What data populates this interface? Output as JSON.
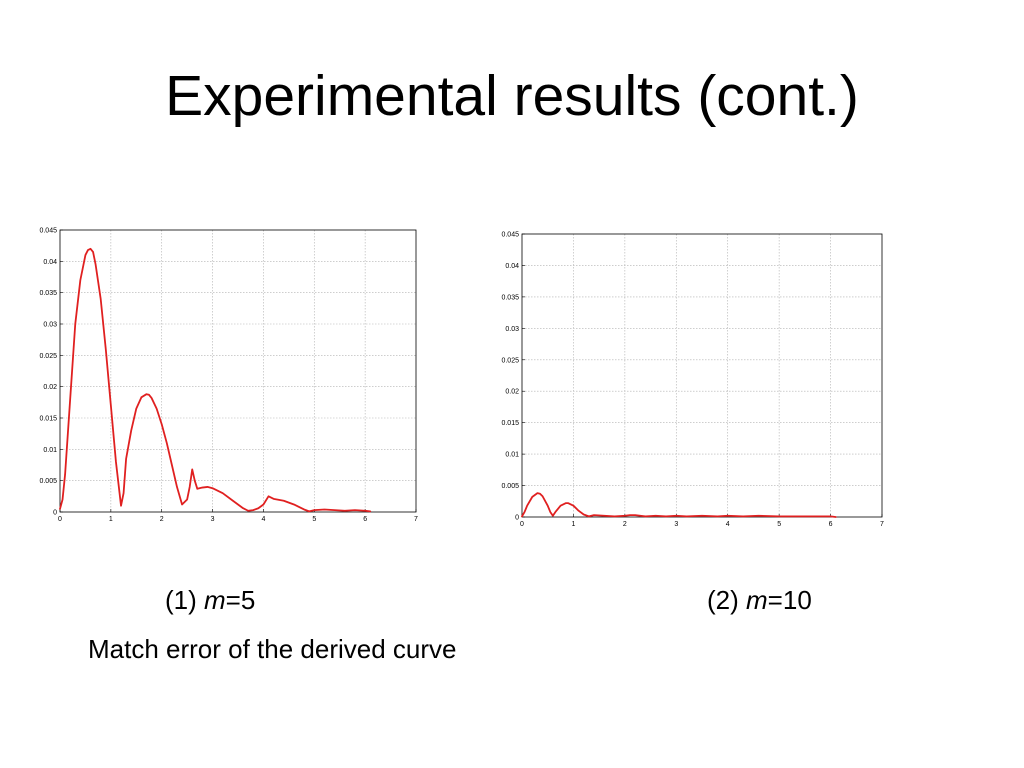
{
  "slide": {
    "title": "Experimental results (cont.)",
    "subtitle": "Match error of the derived curve",
    "captions": [
      {
        "prefix": "(1) ",
        "var": "m",
        "suffix": "=5"
      },
      {
        "prefix": "(2) ",
        "var": "m",
        "suffix": "=10"
      }
    ]
  },
  "chart_data": [
    {
      "type": "line",
      "title": "",
      "xlabel": "",
      "ylabel": "",
      "xlim": [
        0,
        7
      ],
      "ylim": [
        0,
        0.045
      ],
      "grid": true,
      "x_ticks": [
        "0",
        "1",
        "2",
        "3",
        "4",
        "5",
        "6",
        "7"
      ],
      "y_ticks": [
        "0",
        "0.005",
        "0.01",
        "0.015",
        "0.02",
        "0.025",
        "0.03",
        "0.035",
        "0.04",
        "0.045"
      ],
      "line_color": "#e02020",
      "series": [
        {
          "x": [
            0,
            0.05,
            0.1,
            0.2,
            0.3,
            0.4,
            0.5,
            0.55,
            0.6,
            0.65,
            0.7,
            0.8,
            0.9,
            1.0,
            1.1,
            1.2,
            1.25,
            1.3,
            1.4,
            1.5,
            1.6,
            1.7,
            1.75,
            1.8,
            1.9,
            2.0,
            2.1,
            2.2,
            2.3,
            2.4,
            2.5,
            2.55,
            2.6,
            2.65,
            2.7,
            2.8,
            2.9,
            3.0,
            3.2,
            3.4,
            3.6,
            3.7,
            3.8,
            3.9,
            4.0,
            4.1,
            4.2,
            4.4,
            4.6,
            4.8,
            4.9,
            5.0,
            5.2,
            5.4,
            5.6,
            5.8,
            6.0,
            6.1
          ],
          "y": [
            0.0005,
            0.002,
            0.006,
            0.018,
            0.03,
            0.037,
            0.041,
            0.0418,
            0.042,
            0.0415,
            0.0395,
            0.034,
            0.026,
            0.017,
            0.008,
            0.001,
            0.003,
            0.0085,
            0.013,
            0.0165,
            0.0183,
            0.0188,
            0.0187,
            0.0182,
            0.0165,
            0.014,
            0.011,
            0.0075,
            0.004,
            0.0012,
            0.002,
            0.004,
            0.0068,
            0.005,
            0.0037,
            0.0039,
            0.004,
            0.0038,
            0.003,
            0.0018,
            0.0006,
            0.0002,
            0.0003,
            0.0006,
            0.0012,
            0.0025,
            0.0021,
            0.0018,
            0.0012,
            0.0004,
            0.0001,
            0.0003,
            0.0004,
            0.0003,
            0.0002,
            0.0003,
            0.0002,
            0.0001
          ]
        }
      ]
    },
    {
      "type": "line",
      "title": "",
      "xlabel": "",
      "ylabel": "",
      "xlim": [
        0,
        7
      ],
      "ylim": [
        0,
        0.045
      ],
      "grid": true,
      "x_ticks": [
        "0",
        "1",
        "2",
        "3",
        "4",
        "5",
        "6",
        "7"
      ],
      "y_ticks": [
        "0",
        "0.005",
        "0.01",
        "0.015",
        "0.02",
        "0.025",
        "0.03",
        "0.035",
        "0.04",
        "0.045"
      ],
      "line_color": "#e02020",
      "series": [
        {
          "x": [
            0,
            0.05,
            0.1,
            0.2,
            0.3,
            0.35,
            0.4,
            0.5,
            0.55,
            0.6,
            0.65,
            0.75,
            0.85,
            0.9,
            1.0,
            1.1,
            1.2,
            1.3,
            1.4,
            1.6,
            1.8,
            2.0,
            2.1,
            2.2,
            2.4,
            2.6,
            2.8,
            3.0,
            3.2,
            3.5,
            3.8,
            4.0,
            4.3,
            4.6,
            5.0,
            5.5,
            6.0,
            6.1
          ],
          "y": [
            0.0001,
            0.0008,
            0.0018,
            0.0032,
            0.0038,
            0.0037,
            0.0033,
            0.0018,
            0.0008,
            0.0002,
            0.0008,
            0.0018,
            0.0022,
            0.0022,
            0.0018,
            0.001,
            0.0004,
            0.0001,
            0.0003,
            0.0002,
            0.0001,
            0.0002,
            0.0003,
            0.0003,
            0.0001,
            0.0002,
            0.0001,
            0.0002,
            0.0001,
            0.0002,
            0.0001,
            0.0002,
            0.0001,
            0.0002,
            0.0001,
            0.0001,
            0.0001,
            0.0
          ]
        }
      ]
    }
  ]
}
